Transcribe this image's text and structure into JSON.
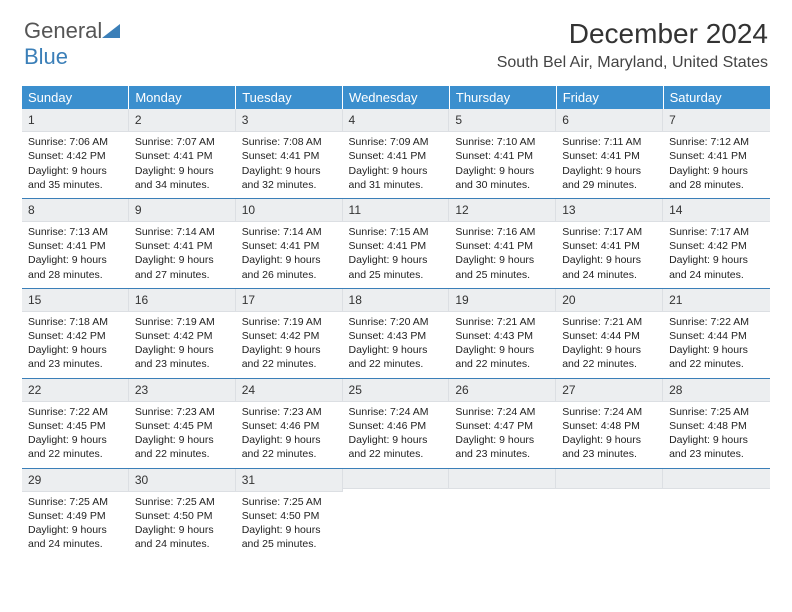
{
  "brand": {
    "name_a": "General",
    "name_b": "Blue"
  },
  "title": "December 2024",
  "location": "South Bel Air, Maryland, United States",
  "colors": {
    "header_bg": "#3b8fce",
    "header_fg": "#ffffff",
    "rule": "#3b7fb8",
    "daynum_bg": "#eceef0",
    "text": "#222222",
    "page_bg": "#ffffff"
  },
  "columns": [
    "Sunday",
    "Monday",
    "Tuesday",
    "Wednesday",
    "Thursday",
    "Friday",
    "Saturday"
  ],
  "font": {
    "body_pt": 10.5,
    "header_pt": 13,
    "title_pt": 28,
    "location_pt": 16
  },
  "weeks": [
    [
      {
        "n": "1",
        "sr": "7:06 AM",
        "ss": "4:42 PM",
        "dl": "9 hours and 35 minutes."
      },
      {
        "n": "2",
        "sr": "7:07 AM",
        "ss": "4:41 PM",
        "dl": "9 hours and 34 minutes."
      },
      {
        "n": "3",
        "sr": "7:08 AM",
        "ss": "4:41 PM",
        "dl": "9 hours and 32 minutes."
      },
      {
        "n": "4",
        "sr": "7:09 AM",
        "ss": "4:41 PM",
        "dl": "9 hours and 31 minutes."
      },
      {
        "n": "5",
        "sr": "7:10 AM",
        "ss": "4:41 PM",
        "dl": "9 hours and 30 minutes."
      },
      {
        "n": "6",
        "sr": "7:11 AM",
        "ss": "4:41 PM",
        "dl": "9 hours and 29 minutes."
      },
      {
        "n": "7",
        "sr": "7:12 AM",
        "ss": "4:41 PM",
        "dl": "9 hours and 28 minutes."
      }
    ],
    [
      {
        "n": "8",
        "sr": "7:13 AM",
        "ss": "4:41 PM",
        "dl": "9 hours and 28 minutes."
      },
      {
        "n": "9",
        "sr": "7:14 AM",
        "ss": "4:41 PM",
        "dl": "9 hours and 27 minutes."
      },
      {
        "n": "10",
        "sr": "7:14 AM",
        "ss": "4:41 PM",
        "dl": "9 hours and 26 minutes."
      },
      {
        "n": "11",
        "sr": "7:15 AM",
        "ss": "4:41 PM",
        "dl": "9 hours and 25 minutes."
      },
      {
        "n": "12",
        "sr": "7:16 AM",
        "ss": "4:41 PM",
        "dl": "9 hours and 25 minutes."
      },
      {
        "n": "13",
        "sr": "7:17 AM",
        "ss": "4:41 PM",
        "dl": "9 hours and 24 minutes."
      },
      {
        "n": "14",
        "sr": "7:17 AM",
        "ss": "4:42 PM",
        "dl": "9 hours and 24 minutes."
      }
    ],
    [
      {
        "n": "15",
        "sr": "7:18 AM",
        "ss": "4:42 PM",
        "dl": "9 hours and 23 minutes."
      },
      {
        "n": "16",
        "sr": "7:19 AM",
        "ss": "4:42 PM",
        "dl": "9 hours and 23 minutes."
      },
      {
        "n": "17",
        "sr": "7:19 AM",
        "ss": "4:42 PM",
        "dl": "9 hours and 22 minutes."
      },
      {
        "n": "18",
        "sr": "7:20 AM",
        "ss": "4:43 PM",
        "dl": "9 hours and 22 minutes."
      },
      {
        "n": "19",
        "sr": "7:21 AM",
        "ss": "4:43 PM",
        "dl": "9 hours and 22 minutes."
      },
      {
        "n": "20",
        "sr": "7:21 AM",
        "ss": "4:44 PM",
        "dl": "9 hours and 22 minutes."
      },
      {
        "n": "21",
        "sr": "7:22 AM",
        "ss": "4:44 PM",
        "dl": "9 hours and 22 minutes."
      }
    ],
    [
      {
        "n": "22",
        "sr": "7:22 AM",
        "ss": "4:45 PM",
        "dl": "9 hours and 22 minutes."
      },
      {
        "n": "23",
        "sr": "7:23 AM",
        "ss": "4:45 PM",
        "dl": "9 hours and 22 minutes."
      },
      {
        "n": "24",
        "sr": "7:23 AM",
        "ss": "4:46 PM",
        "dl": "9 hours and 22 minutes."
      },
      {
        "n": "25",
        "sr": "7:24 AM",
        "ss": "4:46 PM",
        "dl": "9 hours and 22 minutes."
      },
      {
        "n": "26",
        "sr": "7:24 AM",
        "ss": "4:47 PM",
        "dl": "9 hours and 23 minutes."
      },
      {
        "n": "27",
        "sr": "7:24 AM",
        "ss": "4:48 PM",
        "dl": "9 hours and 23 minutes."
      },
      {
        "n": "28",
        "sr": "7:25 AM",
        "ss": "4:48 PM",
        "dl": "9 hours and 23 minutes."
      }
    ],
    [
      {
        "n": "29",
        "sr": "7:25 AM",
        "ss": "4:49 PM",
        "dl": "9 hours and 24 minutes."
      },
      {
        "n": "30",
        "sr": "7:25 AM",
        "ss": "4:50 PM",
        "dl": "9 hours and 24 minutes."
      },
      {
        "n": "31",
        "sr": "7:25 AM",
        "ss": "4:50 PM",
        "dl": "9 hours and 25 minutes."
      },
      null,
      null,
      null,
      null
    ]
  ],
  "labels": {
    "sunrise": "Sunrise:",
    "sunset": "Sunset:",
    "daylight": "Daylight:"
  }
}
